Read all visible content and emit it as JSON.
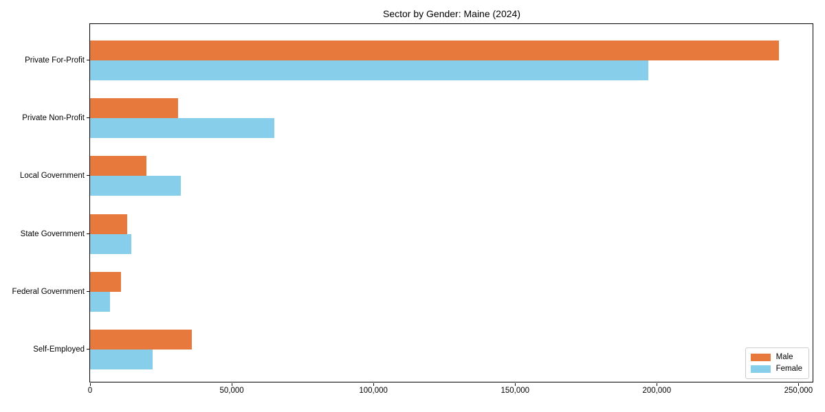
{
  "chart_data": {
    "type": "bar",
    "orientation": "horizontal",
    "title": "Sector by Gender: Maine (2024)",
    "categories": [
      "Private For-Profit",
      "Private Non-Profit",
      "Local Government",
      "State Government",
      "Federal Government",
      "Self-Employed"
    ],
    "series": [
      {
        "name": "Male",
        "color": "#e8793d",
        "values": [
          243000,
          31000,
          20000,
          13000,
          11000,
          36000
        ]
      },
      {
        "name": "Female",
        "color": "#87ceeb",
        "values": [
          197000,
          65000,
          32000,
          14500,
          7000,
          22000
        ]
      }
    ],
    "xlabel": "",
    "ylabel": "",
    "xlim": [
      0,
      255000
    ],
    "xticks": [
      0,
      50000,
      100000,
      150000,
      200000,
      250000
    ],
    "xtick_labels": [
      "0",
      "50,000",
      "100,000",
      "150,000",
      "200,000",
      "250,000"
    ],
    "grid": false,
    "legend": {
      "position": "lower-right",
      "entries": [
        "Male",
        "Female"
      ],
      "border_color": "#cccccc"
    },
    "spine_color": "#000000",
    "background_color": "#ffffff"
  }
}
